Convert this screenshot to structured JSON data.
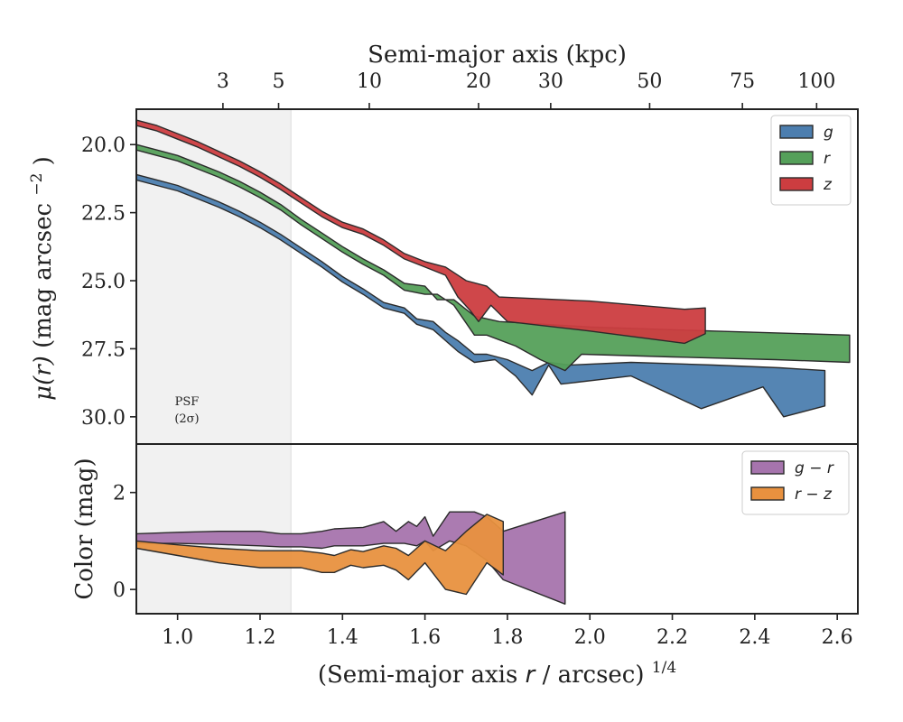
{
  "chart_data": [
    {
      "type": "area",
      "panel": "surface-brightness",
      "ylabel_main": "μ(r)",
      "ylabel_unit": "(mag arcsec",
      "ylabel_exp": "−2",
      "ylabel_close": ")",
      "ylim": [
        31.0,
        18.7
      ],
      "y_inverted": true,
      "yticks": [
        20.0,
        22.5,
        25.0,
        27.5,
        30.0
      ],
      "ytick_labels": [
        "20.0",
        "22.5",
        "25.0",
        "27.5",
        "30.0"
      ],
      "xlim": [
        0.9,
        2.65
      ],
      "top_axis": {
        "label": "Semi-major axis (kpc)",
        "ticks": [
          {
            "x": 1.11,
            "label": "3"
          },
          {
            "x": 1.245,
            "label": "5"
          },
          {
            "x": 1.465,
            "label": "10"
          },
          {
            "x": 1.73,
            "label": "20"
          },
          {
            "x": 1.905,
            "label": "30"
          },
          {
            "x": 2.145,
            "label": "50"
          },
          {
            "x": 2.37,
            "label": "75"
          },
          {
            "x": 2.55,
            "label": "100"
          }
        ]
      },
      "psf_region": {
        "x_max": 1.275,
        "label_line1": "PSF",
        "label_line2": "(2σ)"
      },
      "legend": {
        "placement": "top-right",
        "entries": [
          "g",
          "r",
          "z"
        ]
      },
      "series": [
        {
          "name": "g",
          "color": "#4c7eaf",
          "upper_edge": [
            [
              0.9,
              21.1
            ],
            [
              0.95,
              21.3
            ],
            [
              1.0,
              21.5
            ],
            [
              1.05,
              21.8
            ],
            [
              1.1,
              22.1
            ],
            [
              1.15,
              22.45
            ],
            [
              1.2,
              22.85
            ],
            [
              1.25,
              23.3
            ],
            [
              1.3,
              23.8
            ],
            [
              1.35,
              24.3
            ],
            [
              1.4,
              24.85
            ],
            [
              1.45,
              25.3
            ],
            [
              1.5,
              25.8
            ],
            [
              1.55,
              26.0
            ],
            [
              1.58,
              26.4
            ],
            [
              1.62,
              26.5
            ],
            [
              1.65,
              26.9
            ],
            [
              1.68,
              27.2
            ],
            [
              1.72,
              27.7
            ],
            [
              1.75,
              27.7
            ],
            [
              1.8,
              27.9
            ],
            [
              1.86,
              28.3
            ],
            [
              1.9,
              28.0
            ],
            [
              1.95,
              28.1
            ],
            [
              2.1,
              28.0
            ],
            [
              2.3,
              28.1
            ],
            [
              2.46,
              28.2
            ],
            [
              2.57,
              28.3
            ]
          ],
          "lower_edge": [
            [
              0.9,
              21.3
            ],
            [
              0.95,
              21.5
            ],
            [
              1.0,
              21.7
            ],
            [
              1.05,
              22.0
            ],
            [
              1.1,
              22.3
            ],
            [
              1.15,
              22.65
            ],
            [
              1.2,
              23.05
            ],
            [
              1.25,
              23.5
            ],
            [
              1.3,
              24.0
            ],
            [
              1.35,
              24.5
            ],
            [
              1.4,
              25.05
            ],
            [
              1.45,
              25.5
            ],
            [
              1.5,
              26.0
            ],
            [
              1.55,
              26.2
            ],
            [
              1.58,
              26.6
            ],
            [
              1.62,
              26.8
            ],
            [
              1.65,
              27.2
            ],
            [
              1.68,
              27.6
            ],
            [
              1.72,
              28.0
            ],
            [
              1.77,
              27.9
            ],
            [
              1.82,
              28.5
            ],
            [
              1.86,
              29.2
            ],
            [
              1.9,
              28.1
            ],
            [
              1.93,
              28.8
            ],
            [
              2.1,
              28.5
            ],
            [
              2.27,
              29.7
            ],
            [
              2.42,
              28.9
            ],
            [
              2.47,
              30.0
            ],
            [
              2.57,
              29.6
            ]
          ]
        },
        {
          "name": "r",
          "color": "#55a05a",
          "upper_edge": [
            [
              0.9,
              20.0
            ],
            [
              0.95,
              20.2
            ],
            [
              1.0,
              20.4
            ],
            [
              1.05,
              20.7
            ],
            [
              1.1,
              21.0
            ],
            [
              1.15,
              21.35
            ],
            [
              1.2,
              21.75
            ],
            [
              1.25,
              22.2
            ],
            [
              1.3,
              22.75
            ],
            [
              1.35,
              23.25
            ],
            [
              1.4,
              23.75
            ],
            [
              1.45,
              24.2
            ],
            [
              1.5,
              24.6
            ],
            [
              1.55,
              25.1
            ],
            [
              1.6,
              25.2
            ],
            [
              1.63,
              25.7
            ],
            [
              1.67,
              25.7
            ],
            [
              1.72,
              26.3
            ],
            [
              1.78,
              26.5
            ],
            [
              2.0,
              26.7
            ],
            [
              2.3,
              26.85
            ],
            [
              2.63,
              27.0
            ]
          ],
          "lower_edge": [
            [
              0.9,
              20.2
            ],
            [
              0.95,
              20.4
            ],
            [
              1.0,
              20.6
            ],
            [
              1.05,
              20.9
            ],
            [
              1.1,
              21.2
            ],
            [
              1.15,
              21.55
            ],
            [
              1.2,
              21.95
            ],
            [
              1.25,
              22.4
            ],
            [
              1.3,
              22.95
            ],
            [
              1.35,
              23.45
            ],
            [
              1.4,
              23.95
            ],
            [
              1.45,
              24.4
            ],
            [
              1.5,
              24.8
            ],
            [
              1.55,
              25.35
            ],
            [
              1.6,
              25.5
            ],
            [
              1.63,
              25.5
            ],
            [
              1.67,
              25.9
            ],
            [
              1.72,
              27.0
            ],
            [
              1.75,
              27.0
            ],
            [
              1.82,
              27.4
            ],
            [
              1.88,
              27.9
            ],
            [
              1.94,
              28.3
            ],
            [
              1.98,
              27.7
            ],
            [
              2.2,
              27.8
            ],
            [
              2.45,
              27.9
            ],
            [
              2.63,
              28.0
            ]
          ]
        },
        {
          "name": "z",
          "color": "#cc3d40",
          "upper_edge": [
            [
              0.9,
              19.1
            ],
            [
              0.95,
              19.3
            ],
            [
              1.0,
              19.6
            ],
            [
              1.05,
              19.9
            ],
            [
              1.1,
              20.25
            ],
            [
              1.15,
              20.6
            ],
            [
              1.2,
              21.0
            ],
            [
              1.25,
              21.45
            ],
            [
              1.3,
              21.95
            ],
            [
              1.35,
              22.45
            ],
            [
              1.4,
              22.85
            ],
            [
              1.45,
              23.1
            ],
            [
              1.5,
              23.5
            ],
            [
              1.55,
              24.0
            ],
            [
              1.6,
              24.3
            ],
            [
              1.65,
              24.5
            ],
            [
              1.7,
              25.0
            ],
            [
              1.75,
              25.2
            ],
            [
              1.78,
              25.6
            ],
            [
              2.0,
              25.75
            ],
            [
              2.23,
              26.05
            ],
            [
              2.28,
              26.0
            ]
          ],
          "lower_edge": [
            [
              0.9,
              19.3
            ],
            [
              0.95,
              19.5
            ],
            [
              1.0,
              19.8
            ],
            [
              1.05,
              20.1
            ],
            [
              1.1,
              20.45
            ],
            [
              1.15,
              20.8
            ],
            [
              1.2,
              21.2
            ],
            [
              1.25,
              21.65
            ],
            [
              1.3,
              22.15
            ],
            [
              1.35,
              22.65
            ],
            [
              1.4,
              23.05
            ],
            [
              1.45,
              23.3
            ],
            [
              1.5,
              23.7
            ],
            [
              1.55,
              24.2
            ],
            [
              1.6,
              24.5
            ],
            [
              1.65,
              24.8
            ],
            [
              1.68,
              25.6
            ],
            [
              1.71,
              26.1
            ],
            [
              1.73,
              26.5
            ],
            [
              1.76,
              25.9
            ],
            [
              1.8,
              26.5
            ],
            [
              2.0,
              26.85
            ],
            [
              2.23,
              27.3
            ],
            [
              2.28,
              26.95
            ]
          ]
        }
      ]
    },
    {
      "type": "area",
      "panel": "color",
      "ylabel": "Color (mag)",
      "ylim": [
        -0.5,
        3.0
      ],
      "yticks": [
        0,
        2
      ],
      "ytick_labels": [
        "0",
        "2"
      ],
      "xlim": [
        0.9,
        2.65
      ],
      "xticks": [
        1.0,
        1.2,
        1.4,
        1.6,
        1.8,
        2.0,
        2.2,
        2.4,
        2.6
      ],
      "xtick_labels": [
        "1.0",
        "1.2",
        "1.4",
        "1.6",
        "1.8",
        "2.0",
        "2.2",
        "2.4",
        "2.6"
      ],
      "xlabel_main": "(Semi-major axis ",
      "xlabel_var": "r",
      "xlabel_rest": " / arcsec)",
      "xlabel_exp": "1/4",
      "legend": {
        "placement": "top-right",
        "entries": [
          "g − r",
          "r − z"
        ]
      },
      "series": [
        {
          "name": "g − r",
          "color": "#a674ad",
          "upper_edge": [
            [
              0.9,
              1.15
            ],
            [
              1.0,
              1.18
            ],
            [
              1.1,
              1.2
            ],
            [
              1.2,
              1.2
            ],
            [
              1.25,
              1.15
            ],
            [
              1.3,
              1.15
            ],
            [
              1.35,
              1.2
            ],
            [
              1.38,
              1.25
            ],
            [
              1.45,
              1.28
            ],
            [
              1.5,
              1.4
            ],
            [
              1.53,
              1.2
            ],
            [
              1.56,
              1.4
            ],
            [
              1.58,
              1.3
            ],
            [
              1.6,
              1.5
            ],
            [
              1.62,
              1.1
            ],
            [
              1.66,
              1.6
            ],
            [
              1.72,
              1.6
            ],
            [
              1.75,
              1.5
            ],
            [
              1.79,
              1.2
            ],
            [
              1.94,
              1.6
            ]
          ],
          "lower_edge": [
            [
              0.9,
              0.95
            ],
            [
              1.0,
              0.95
            ],
            [
              1.1,
              0.93
            ],
            [
              1.2,
              0.9
            ],
            [
              1.25,
              0.88
            ],
            [
              1.3,
              0.88
            ],
            [
              1.35,
              0.85
            ],
            [
              1.38,
              0.9
            ],
            [
              1.45,
              0.9
            ],
            [
              1.5,
              0.95
            ],
            [
              1.55,
              0.95
            ],
            [
              1.58,
              0.9
            ],
            [
              1.6,
              1.0
            ],
            [
              1.62,
              0.8
            ],
            [
              1.66,
              1.0
            ],
            [
              1.7,
              0.9
            ],
            [
              1.75,
              0.6
            ],
            [
              1.79,
              0.2
            ],
            [
              1.94,
              -0.3
            ]
          ]
        },
        {
          "name": "r − z",
          "color": "#e8913f",
          "upper_edge": [
            [
              0.9,
              1.0
            ],
            [
              1.0,
              0.92
            ],
            [
              1.1,
              0.85
            ],
            [
              1.2,
              0.8
            ],
            [
              1.25,
              0.8
            ],
            [
              1.3,
              0.8
            ],
            [
              1.35,
              0.75
            ],
            [
              1.38,
              0.7
            ],
            [
              1.42,
              0.82
            ],
            [
              1.45,
              0.78
            ],
            [
              1.5,
              0.9
            ],
            [
              1.53,
              0.85
            ],
            [
              1.56,
              0.7
            ],
            [
              1.6,
              1.0
            ],
            [
              1.65,
              0.8
            ],
            [
              1.7,
              1.2
            ],
            [
              1.75,
              1.55
            ],
            [
              1.79,
              1.4
            ]
          ],
          "lower_edge": [
            [
              0.9,
              0.85
            ],
            [
              1.0,
              0.7
            ],
            [
              1.1,
              0.55
            ],
            [
              1.2,
              0.45
            ],
            [
              1.25,
              0.45
            ],
            [
              1.3,
              0.45
            ],
            [
              1.35,
              0.35
            ],
            [
              1.38,
              0.35
            ],
            [
              1.42,
              0.5
            ],
            [
              1.45,
              0.45
            ],
            [
              1.5,
              0.5
            ],
            [
              1.53,
              0.4
            ],
            [
              1.56,
              0.2
            ],
            [
              1.6,
              0.55
            ],
            [
              1.65,
              0.0
            ],
            [
              1.7,
              -0.1
            ],
            [
              1.75,
              0.55
            ],
            [
              1.79,
              0.3
            ]
          ]
        }
      ]
    }
  ]
}
